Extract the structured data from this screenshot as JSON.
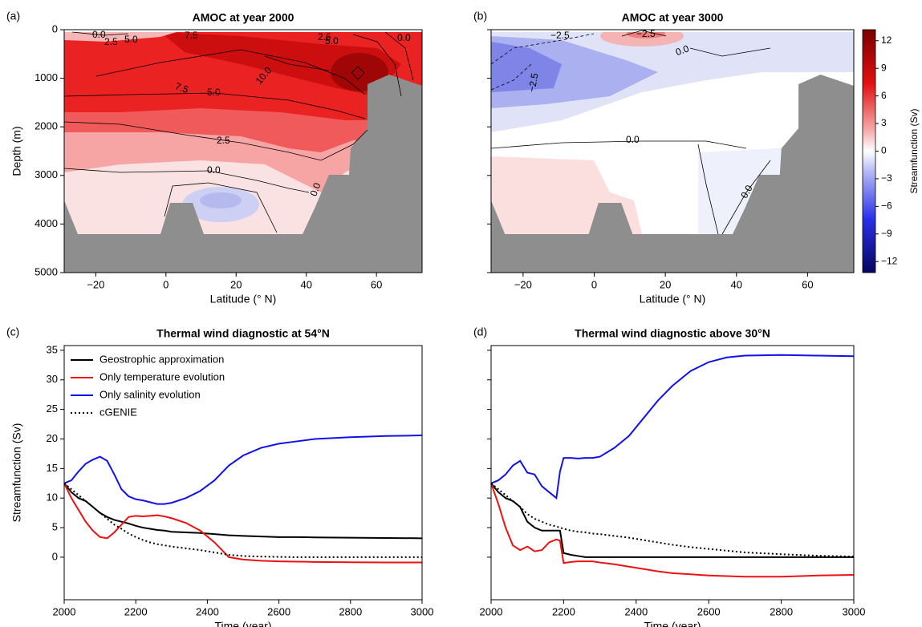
{
  "chart_data": [
    {
      "type": "contour",
      "panel_label": "(a)",
      "title": "AMOC at year 2000",
      "xlabel": "Latitude (° N)",
      "ylabel": "Depth (m)",
      "xlim": [
        -29,
        73
      ],
      "ylim": [
        5000,
        0
      ],
      "xticks": [
        {
          "value": -20,
          "label": "−20"
        },
        0,
        20,
        40,
        60
      ],
      "yticks": [
        0,
        1000,
        2000,
        3000,
        4000,
        5000
      ],
      "contour_labels": [
        "0.0",
        "2.5",
        "5.0",
        "7.5",
        "2.5",
        "5.0",
        "0.0",
        "10.0",
        "7.5",
        "5.0",
        "2.5",
        "0.0",
        "0.0"
      ]
    },
    {
      "type": "contour",
      "panel_label": "(b)",
      "title": "AMOC at year 3000",
      "xlabel": "Latitude (° N)",
      "sharey": true,
      "xlim": [
        -29,
        73
      ],
      "ylim": [
        5000,
        0
      ],
      "xticks": [
        {
          "value": -20,
          "label": "−20"
        },
        0,
        20,
        40,
        60
      ],
      "yticks": [
        0,
        1000,
        2000,
        3000,
        4000,
        5000
      ],
      "contour_labels": [
        "−2.5",
        "−2.5",
        "−2.5",
        "0.0",
        "0.0",
        "0.0"
      ],
      "colorbar": {
        "label": "Streamfunction (Sv)",
        "lim": [
          -13.2,
          13.2
        ],
        "ticks": [
          12,
          9,
          6,
          3,
          0,
          {
            "value": -3,
            "label": "−3"
          },
          {
            "value": -6,
            "label": "−6"
          },
          {
            "value": -9,
            "label": "−9"
          },
          {
            "value": -12,
            "label": "−12"
          }
        ]
      }
    },
    {
      "type": "line",
      "panel_label": "(c)",
      "title": "Thermal wind diagnostic at 54°N",
      "xlabel": "Time (year)",
      "ylabel": "Streamfunction (Sv)",
      "legend": "upper left",
      "xlim": [
        2000,
        3000
      ],
      "ylim": [
        -7.2,
        35.8
      ],
      "xticks": [
        2000,
        2200,
        2400,
        2600,
        2800,
        3000
      ],
      "yticks": [
        0,
        5,
        10,
        15,
        20,
        25,
        30,
        35
      ],
      "x": [
        2000,
        2020,
        2040,
        2060,
        2080,
        2100,
        2120,
        2140,
        2160,
        2180,
        2200,
        2220,
        2240,
        2260,
        2280,
        2300,
        2340,
        2380,
        2420,
        2460,
        2500,
        2550,
        2600,
        2650,
        2700,
        2800,
        2900,
        3000
      ],
      "series": [
        {
          "name": "Geostrophic approximation",
          "color": "#000000",
          "linestyle": "solid",
          "values": [
            12.5,
            11,
            10,
            9.5,
            8.5,
            7.5,
            6.8,
            6.3,
            6,
            5.7,
            5.3,
            5,
            4.8,
            4.6,
            4.5,
            4.3,
            4.2,
            4.1,
            3.9,
            3.7,
            3.6,
            3.5,
            3.4,
            3.4,
            3.35,
            3.3,
            3.25,
            3.2
          ]
        },
        {
          "name": "Only temperature evolution",
          "color": "#ee1111",
          "linestyle": "solid",
          "values": [
            12.5,
            10,
            8,
            6,
            4.5,
            3.4,
            3.2,
            4.2,
            5.5,
            6.8,
            7,
            6.9,
            7,
            7.1,
            6.9,
            6.6,
            5.8,
            4.5,
            2.5,
            0,
            -0.4,
            -0.6,
            -0.7,
            -0.75,
            -0.8,
            -0.85,
            -0.9,
            -0.9
          ]
        },
        {
          "name": "Only salinity evolution",
          "color": "#1111ee",
          "linestyle": "solid",
          "values": [
            12.5,
            13,
            14.5,
            15.8,
            16.5,
            17,
            16.3,
            14,
            11.5,
            10.3,
            9.8,
            9.6,
            9.3,
            9,
            9,
            9.2,
            10,
            11.2,
            13,
            15.5,
            17.2,
            18.5,
            19.2,
            19.6,
            20,
            20.3,
            20.5,
            20.6
          ]
        },
        {
          "name": "cGENIE",
          "color": "#000000",
          "linestyle": "dotted",
          "values": [
            12.5,
            11.5,
            10.5,
            9.5,
            8.5,
            7.5,
            6.5,
            5.5,
            4.8,
            4,
            3.4,
            2.9,
            2.5,
            2.2,
            2,
            1.8,
            1.5,
            1.2,
            0.8,
            0.4,
            0.2,
            0.1,
            0.05,
            0,
            0,
            0,
            0,
            0
          ]
        }
      ]
    },
    {
      "type": "line",
      "panel_label": "(d)",
      "title": "Thermal wind diagnostic above 30°N",
      "xlabel": "Time (year)",
      "sharey": true,
      "xlim": [
        2000,
        3000
      ],
      "ylim": [
        -7.2,
        35.8
      ],
      "xticks": [
        2000,
        2200,
        2400,
        2600,
        2800,
        3000
      ],
      "yticks": [
        0,
        5,
        10,
        15,
        20,
        25,
        30,
        35
      ],
      "x": [
        2000,
        2020,
        2040,
        2060,
        2080,
        2100,
        2120,
        2140,
        2160,
        2180,
        2190,
        2200,
        2220,
        2240,
        2260,
        2280,
        2300,
        2340,
        2380,
        2420,
        2460,
        2500,
        2550,
        2600,
        2650,
        2700,
        2800,
        2900,
        3000
      ],
      "series": [
        {
          "name": "Geostrophic approximation",
          "color": "#000000",
          "linestyle": "solid",
          "values": [
            12.5,
            11,
            10,
            9.5,
            8.5,
            6,
            5,
            4.5,
            4.5,
            4.5,
            4.5,
            0.7,
            0.4,
            0.2,
            0,
            0,
            0,
            0,
            0,
            0,
            0,
            0,
            0,
            0,
            0,
            0,
            0,
            0,
            0
          ]
        },
        {
          "name": "Only temperature evolution",
          "color": "#ee1111",
          "linestyle": "solid",
          "values": [
            12.5,
            9,
            5,
            2,
            1.2,
            1.8,
            1,
            1.2,
            2.5,
            3,
            2.8,
            -1,
            -0.8,
            -0.7,
            -0.7,
            -0.7,
            -0.9,
            -1.2,
            -1.6,
            -2,
            -2.4,
            -2.7,
            -2.9,
            -3.1,
            -3.2,
            -3.3,
            -3.3,
            -3.1,
            -3
          ]
        },
        {
          "name": "Only salinity evolution",
          "color": "#1111ee",
          "linestyle": "solid",
          "values": [
            12.5,
            13,
            14,
            15.5,
            16.3,
            14.3,
            14,
            12,
            11,
            10,
            14.5,
            16.8,
            16.8,
            16.7,
            16.8,
            16.8,
            17,
            18.5,
            20.5,
            23.5,
            26.5,
            29,
            31.5,
            33,
            33.8,
            34.1,
            34.2,
            34.1,
            34
          ]
        },
        {
          "name": "cGENIE",
          "color": "#000000",
          "linestyle": "dotted",
          "values": [
            12.5,
            11.5,
            10.5,
            9.5,
            8.5,
            7.3,
            6.5,
            6,
            5.5,
            5.2,
            5,
            4.8,
            4.5,
            4.3,
            4.2,
            4,
            3.9,
            3.6,
            3.3,
            2.9,
            2.5,
            2.1,
            1.7,
            1.4,
            1.1,
            0.8,
            0.5,
            0.25,
            0.1
          ]
        }
      ]
    }
  ]
}
